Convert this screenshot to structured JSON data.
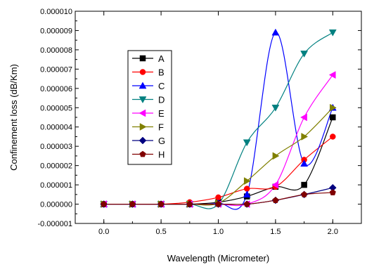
{
  "chart_data": {
    "type": "line",
    "xlabel": "Wavelength (Micrometer)",
    "ylabel": "Confinement loss (dB/Km)",
    "xlim": [
      -0.25,
      2.25
    ],
    "ylim": [
      -1e-06,
      1e-05
    ],
    "x_ticks": [
      "0.0",
      "0.5",
      "1.0",
      "1.5",
      "2.0"
    ],
    "x_tick_values": [
      0.0,
      0.5,
      1.0,
      1.5,
      2.0
    ],
    "y_ticks": [
      "-0.000001",
      "0.000000",
      "0.000001",
      "0.000002",
      "0.000003",
      "0.000004",
      "0.000005",
      "0.000006",
      "0.000007",
      "0.000008",
      "0.000009",
      "0.000010"
    ],
    "y_tick_values": [
      -1e-06,
      0.0,
      1e-06,
      2e-06,
      3e-06,
      4e-06,
      5e-06,
      6e-06,
      7e-06,
      8e-06,
      9e-06,
      1e-05
    ],
    "grid": false,
    "legend_position": "upper-left inside plot",
    "x": [
      0.0,
      0.25,
      0.5,
      0.75,
      1.0,
      1.25,
      1.5,
      1.75,
      2.0
    ],
    "series": [
      {
        "name": "A",
        "color": "#000000",
        "marker": "square",
        "values": [
          0.0,
          0.0,
          0.0,
          0.0,
          1e-07,
          4e-07,
          9e-07,
          1e-06,
          4.5e-06
        ]
      },
      {
        "name": "B",
        "color": "#ff0000",
        "marker": "circle",
        "values": [
          0.0,
          0.0,
          0.0,
          1e-07,
          3.5e-07,
          8e-07,
          9e-07,
          2.3e-06,
          3.5e-06
        ]
      },
      {
        "name": "C",
        "color": "#0000ff",
        "marker": "triangle-up",
        "values": [
          0.0,
          0.0,
          0.0,
          0.0,
          5e-08,
          5e-07,
          8.9e-06,
          2.1e-06,
          5e-06
        ]
      },
      {
        "name": "D",
        "color": "#008080",
        "marker": "triangle-down",
        "values": [
          0.0,
          0.0,
          0.0,
          0.0,
          0.0,
          3.2e-06,
          5e-06,
          7.8e-06,
          8.9e-06
        ]
      },
      {
        "name": "E",
        "color": "#ff00ff",
        "marker": "triangle-left",
        "values": [
          0.0,
          0.0,
          0.0,
          0.0,
          0.0,
          0.0,
          1e-06,
          4.5e-06,
          6.7e-06
        ]
      },
      {
        "name": "F",
        "color": "#808000",
        "marker": "triangle-right",
        "values": [
          0.0,
          0.0,
          0.0,
          0.0,
          5e-08,
          1.2e-06,
          2.5e-06,
          3.5e-06,
          5e-06
        ]
      },
      {
        "name": "G",
        "color": "#000080",
        "marker": "diamond",
        "values": [
          0.0,
          0.0,
          0.0,
          0.0,
          0.0,
          0.0,
          2e-07,
          5e-07,
          8.5e-07
        ]
      },
      {
        "name": "H",
        "color": "#800000",
        "marker": "pentagon",
        "values": [
          0.0,
          0.0,
          0.0,
          0.0,
          0.0,
          0.0,
          2e-07,
          5e-07,
          6e-07
        ]
      }
    ]
  }
}
